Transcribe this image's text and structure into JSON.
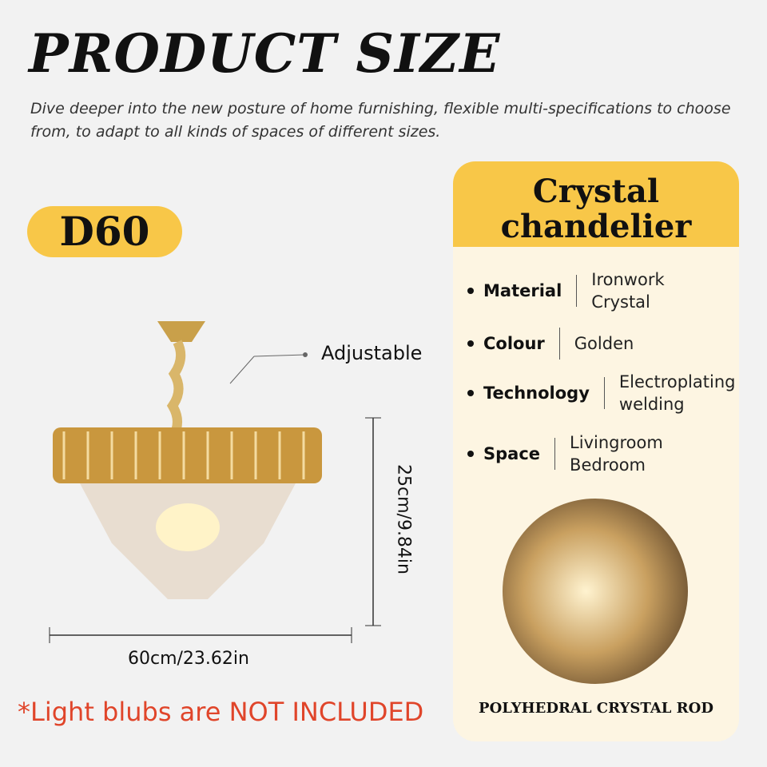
{
  "title": "PRODUCT SIZE",
  "subtitle": "Dive deeper into the new posture of home furnishing, flexible multi-specifications to choose from, to adapt to all kinds of spaces of different sizes.",
  "model": "D60",
  "callout": "Adjustable",
  "width_label": "60cm/23.62in",
  "height_label": "25cm/9.84in",
  "note": "*Light blubs are NOT INCLUDED",
  "card": {
    "title_line1": "Crystal",
    "title_line2": "chandelier",
    "specs": [
      {
        "key": "Material",
        "values": [
          "Ironwork",
          "Crystal"
        ]
      },
      {
        "key": "Colour",
        "values": [
          "Golden"
        ]
      },
      {
        "key": "Technology",
        "values": [
          "Electroplating",
          "welding"
        ]
      },
      {
        "key": "Space",
        "values": [
          "Livingroom",
          "Bedroom"
        ]
      }
    ],
    "caption": "POLYHEDRAL CRYSTAL ROD"
  },
  "colors": {
    "accent": "#f8c748",
    "card_bg": "#fdf5e2",
    "note": "#e0452a"
  }
}
